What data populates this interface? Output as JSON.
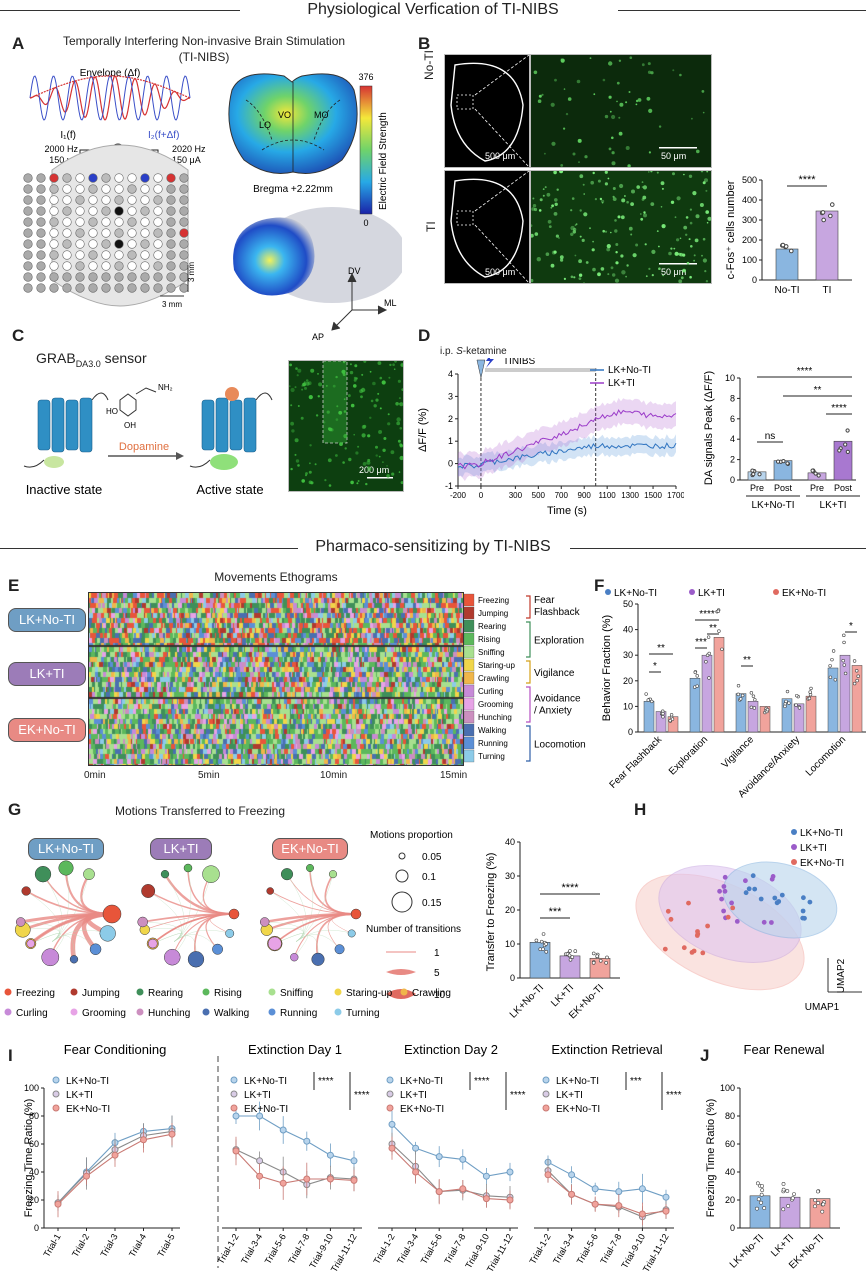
{
  "sections": {
    "s1": "Physiological Verfication of TI-NIBS",
    "s2": "Pharmaco-sensitizing by TI-NIBS"
  },
  "panel_letters": [
    "A",
    "B",
    "C",
    "D",
    "E",
    "F",
    "G",
    "H",
    "I",
    "J"
  ],
  "A": {
    "title1": "Temporally Interfering Non-invasive Brain Stimulation",
    "title2": "(TI-NIBS)",
    "envelope": "Envelope (Δf)",
    "i1": "I₁(f)",
    "i2": "I₂(f+Δf)",
    "f1": "2000 Hz",
    "a1": "150 μA",
    "f2": "2020 Hz",
    "a2": "150 μA",
    "scale_v": "3 mm",
    "scale_h": "3 mm",
    "cbar_max": "376",
    "cbar_min": "0",
    "cbar_label": "Electric Field Strength",
    "bregma": "Bregma +2.22mm",
    "regions": [
      "LO",
      "VO",
      "MO"
    ],
    "axes": [
      "DV",
      "ML",
      "AP"
    ]
  },
  "B": {
    "row1": "No-TI",
    "row2": "TI",
    "scale1": "500 μm",
    "scale2": "50 μm",
    "ylabel": "c-Fos⁺ cells number",
    "yticks": [
      "0",
      "100",
      "200",
      "300",
      "400",
      "500"
    ],
    "xcats": [
      "No-TI",
      "TI"
    ],
    "values": [
      155,
      345
    ],
    "sig": "****"
  },
  "C": {
    "sensor": "GRAB",
    "sensor_sub": "DA3.0",
    "sensor_tail": " sensor",
    "dopamine": "Dopamine",
    "inactive": "Inactive state",
    "active": "Active state",
    "scale": "200 μm",
    "oh1": "HO",
    "oh2": "OH",
    "nh2": "NH₂"
  },
  "D": {
    "inj": "i.p. ",
    "inj_it": "S",
    "inj_tail": "-ketamine",
    "tinibs": "TINIBS",
    "legend": [
      "LK+No-TI",
      "LK+TI"
    ],
    "ylabel": "ΔF/F (%)",
    "xlabel": "Time (s)",
    "yticks": [
      "-1",
      "0",
      "1",
      "2",
      "3",
      "4"
    ],
    "xticks": [
      "-200",
      "0",
      "300",
      "500",
      "700",
      "900",
      "1100",
      "1300",
      "1500",
      "1700"
    ],
    "bar": {
      "ylabel": "DA signals Peak (ΔF/F)",
      "yticks": [
        "0",
        "2",
        "4",
        "6",
        "8",
        "10"
      ],
      "cats": [
        "Pre",
        "Post",
        "Pre",
        "Post"
      ],
      "groups": [
        "LK+No-TI",
        "LK+TI"
      ],
      "values": [
        0.8,
        1.9,
        0.7,
        3.8
      ],
      "sigs": [
        "ns",
        "****",
        "**",
        "****"
      ]
    }
  },
  "E": {
    "title": "Movements Ethograms",
    "groups": [
      "LK+No-TI",
      "LK+TI",
      "EK+No-TI"
    ],
    "times": [
      "0min",
      "5min",
      "10min",
      "15min"
    ],
    "behaviors": [
      "Freezing",
      "Jumping",
      "Rearing",
      "Rising",
      "Sniffing",
      "Staring-up",
      "Crawling",
      "Curling",
      "Grooming",
      "Hunching",
      "Walking",
      "Running",
      "Turning"
    ],
    "categories": [
      "Fear Flashback",
      "Exploration",
      "Vigilance",
      "Avoidance / Anxiety",
      "Locomotion"
    ],
    "colors": [
      "#e8553a",
      "#b03a2e",
      "#3f8f5a",
      "#5cb85c",
      "#a8e08f",
      "#f0d64a",
      "#f0b64a",
      "#c78ad8",
      "#e7a3e6",
      "#cc8fbf",
      "#4a6fb0",
      "#5b8fd6",
      "#8ccbe8"
    ]
  },
  "F": {
    "legend": [
      "LK+No-TI",
      "LK+TI",
      "EK+No-TI"
    ],
    "ylabel": "Behavior Fraction (%)",
    "yticks": [
      "0",
      "10",
      "20",
      "30",
      "40",
      "50"
    ],
    "cats": [
      "Fear Flashback",
      "Exploration",
      "Vigilance",
      "Avoidance/Anxiety",
      "Locomotion"
    ],
    "series": [
      {
        "name": "LK+No-TI",
        "values": [
          12,
          21,
          15,
          13,
          25
        ]
      },
      {
        "name": "LK+TI",
        "values": [
          8,
          30,
          12,
          11,
          30
        ]
      },
      {
        "name": "EK+No-TI",
        "values": [
          6,
          37,
          10,
          14,
          26
        ]
      }
    ],
    "sigs": [
      "**",
      "*",
      "***",
      "****",
      "**",
      "**",
      "*"
    ]
  },
  "G": {
    "title": "Motions Transferred to Freezing",
    "groups": [
      "LK+No-TI",
      "LK+TI",
      "EK+No-TI"
    ],
    "prop_title": "Motions proportion",
    "props": [
      "0.05",
      "0.1",
      "0.15"
    ],
    "trans_title": "Number of transitions",
    "trans": [
      "1",
      "5",
      "10"
    ],
    "bar": {
      "ylabel": "Transfer to Freezing (%)",
      "yticks": [
        "0",
        "10",
        "20",
        "30",
        "40"
      ],
      "cats": [
        "LK+No-TI",
        "LK+TI",
        "EK+No-TI"
      ],
      "values": [
        10.5,
        6.5,
        5.8
      ],
      "sigs": [
        "***",
        "****"
      ]
    },
    "legend": [
      "Freezing",
      "Jumping",
      "Rearing",
      "Rising",
      "Sniffing",
      "Staring-up",
      "Crawling",
      "Curling",
      "Grooming",
      "Hunching",
      "Walking",
      "Running",
      "Turning"
    ]
  },
  "H": {
    "legend": [
      "LK+No-TI",
      "LK+TI",
      "EK+No-TI"
    ],
    "x": "UMAP1",
    "y": "UMAP2"
  },
  "I": {
    "ylabel": "Freezing Time Ratio (%)",
    "yticks": [
      "0",
      "20",
      "40",
      "60",
      "80",
      "100"
    ],
    "legend": [
      "LK+No-TI",
      "LK+TI",
      "EK+No-TI"
    ],
    "panels": [
      {
        "title": "Fear Conditioning",
        "x": [
          "Trial-1",
          "Trial-2",
          "Trial-3",
          "Trial-4",
          "Trial-5"
        ],
        "series": [
          [
            18,
            40,
            61,
            69,
            71
          ],
          [
            18,
            39,
            56,
            66,
            69
          ],
          [
            17,
            37,
            52,
            63,
            67
          ]
        ],
        "sigs": []
      },
      {
        "title": "Extinction Day 1",
        "x": [
          "Trial-1-2",
          "Trial-3-4",
          "Trial-5-6",
          "Trial-7-8",
          "Trial-9-10",
          "Trial-11-12"
        ],
        "series": [
          [
            80,
            80,
            70,
            62,
            52,
            48
          ],
          [
            56,
            48,
            40,
            31,
            36,
            35
          ],
          [
            55,
            37,
            32,
            35,
            35,
            34
          ]
        ],
        "sigs": [
          "****",
          "****"
        ]
      },
      {
        "title": "Extinction Day 2",
        "x": [
          "Trial-1-2",
          "Trial-3-4",
          "Trial-5-6",
          "Trial-7-8",
          "Trial-9-10",
          "Trial-11-12"
        ],
        "series": [
          [
            74,
            57,
            51,
            49,
            37,
            40
          ],
          [
            60,
            44,
            26,
            27,
            23,
            22
          ],
          [
            57,
            40,
            26,
            28,
            21,
            20
          ]
        ],
        "sigs": [
          "****",
          "****"
        ]
      },
      {
        "title": "Extinction Retrieval",
        "x": [
          "Trial-1-2",
          "Trial-3-4",
          "Trial-5-6",
          "Trial-7-8",
          "Trial-9-10",
          "Trial-11-12"
        ],
        "series": [
          [
            47,
            38,
            28,
            26,
            28,
            22
          ],
          [
            41,
            24,
            17,
            15,
            8,
            13
          ],
          [
            38,
            24,
            17,
            16,
            10,
            12
          ]
        ],
        "sigs": [
          "***",
          "****"
        ]
      }
    ]
  },
  "J": {
    "title": "Fear Renewal",
    "ylabel": "Freezing Time Ratio (%)",
    "yticks": [
      "0",
      "20",
      "40",
      "60",
      "80",
      "100"
    ],
    "cats": [
      "LK+No-TI",
      "LK+TI",
      "EK+No-TI"
    ],
    "values": [
      23,
      22,
      21
    ]
  }
}
